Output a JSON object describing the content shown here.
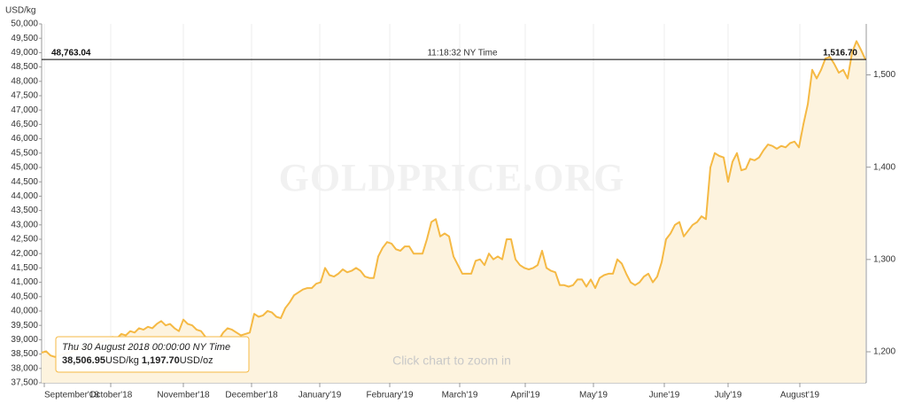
{
  "chart_data": {
    "type": "line",
    "y_axis_label": "USD/kg",
    "watermark": "GOLDPRICE.ORG",
    "zoom_hint": "Click chart to zoom in",
    "current": {
      "value": 48763.04,
      "label": "48,763.04",
      "time": "11:18:32 NY Time",
      "oz_label": "1,516.70"
    },
    "tooltip": {
      "date": "Thu 30 August 2018 00:00:00 NY Time",
      "kg_price": "38,506.95",
      "kg_unit": "USD/kg",
      "oz_price": "1,197.70",
      "oz_unit": "USD/oz"
    },
    "xlim": [
      0,
      186
    ],
    "xticks": [
      {
        "value": 0.6,
        "label": "September'18"
      },
      {
        "value": 15.6,
        "label": "October'18"
      },
      {
        "value": 32,
        "label": "November'18"
      },
      {
        "value": 47.4,
        "label": "December'18"
      },
      {
        "value": 62.8,
        "label": "January'19"
      },
      {
        "value": 78.6,
        "label": "February'19"
      },
      {
        "value": 94.4,
        "label": "March'19"
      },
      {
        "value": 109.2,
        "label": "April'19"
      },
      {
        "value": 124.6,
        "label": "May'19"
      },
      {
        "value": 140.6,
        "label": "June'19"
      },
      {
        "value": 155,
        "label": "July'19"
      },
      {
        "value": 171.2,
        "label": "August'19"
      }
    ],
    "ylim": [
      37500,
      50000
    ],
    "yticks": [
      {
        "value": 37500,
        "label": "37,500"
      },
      {
        "value": 38000,
        "label": "38,000"
      },
      {
        "value": 38500,
        "label": "38,500"
      },
      {
        "value": 39000,
        "label": "39,000"
      },
      {
        "value": 39500,
        "label": "39,500"
      },
      {
        "value": 40000,
        "label": "40,000"
      },
      {
        "value": 40500,
        "label": "40,500"
      },
      {
        "value": 41000,
        "label": "41,000"
      },
      {
        "value": 41500,
        "label": "41,500"
      },
      {
        "value": 42000,
        "label": "42,000"
      },
      {
        "value": 42500,
        "label": "42,500"
      },
      {
        "value": 43000,
        "label": "43,000"
      },
      {
        "value": 43500,
        "label": "43,500"
      },
      {
        "value": 44000,
        "label": "44,000"
      },
      {
        "value": 44500,
        "label": "44,500"
      },
      {
        "value": 45000,
        "label": "45,000"
      },
      {
        "value": 45500,
        "label": "45,500"
      },
      {
        "value": 46000,
        "label": "46,000"
      },
      {
        "value": 46500,
        "label": "46,500"
      },
      {
        "value": 47000,
        "label": "47,000"
      },
      {
        "value": 47500,
        "label": "47,500"
      },
      {
        "value": 48000,
        "label": "48,000"
      },
      {
        "value": 48500,
        "label": "48,500"
      },
      {
        "value": 49000,
        "label": "49,000"
      },
      {
        "value": 49500,
        "label": "49,500"
      },
      {
        "value": 50000,
        "label": "50,000"
      }
    ],
    "y2lim": [
      1166.4,
      1555.2
    ],
    "y2ticks": [
      {
        "value": 1200,
        "label": "1,200"
      },
      {
        "value": 1300,
        "label": "1,300"
      },
      {
        "value": 1400,
        "label": "1,400"
      },
      {
        "value": 1500,
        "label": "1,500"
      }
    ],
    "grid": true,
    "series": [
      {
        "name": "Gold",
        "color": "#f5b944",
        "fill": "#fdf3de",
        "values": [
          38550,
          38600,
          38450,
          38400,
          38450,
          38500,
          38550,
          38600,
          38650,
          38700,
          38750,
          38800,
          38850,
          38900,
          38950,
          39000,
          39100,
          39050,
          39200,
          39150,
          39300,
          39250,
          39400,
          39350,
          39450,
          39400,
          39550,
          39650,
          39500,
          39550,
          39400,
          39300,
          39700,
          39550,
          39500,
          39350,
          39300,
          39100,
          38950,
          38900,
          39000,
          39250,
          39400,
          39350,
          39250,
          39150,
          39200,
          39250,
          39900,
          39800,
          39850,
          40000,
          39950,
          39800,
          39750,
          40100,
          40300,
          40550,
          40650,
          40750,
          40800,
          40800,
          40950,
          41000,
          41500,
          41250,
          41200,
          41300,
          41450,
          41350,
          41400,
          41500,
          41400,
          41200,
          41150,
          41150,
          41900,
          42200,
          42400,
          42350,
          42150,
          42100,
          42250,
          42250,
          42000,
          42000,
          42000,
          42500,
          43100,
          43200,
          42600,
          42700,
          42600,
          41900,
          41600,
          41300,
          41300,
          41300,
          41750,
          41800,
          41600,
          42000,
          41800,
          41900,
          41800,
          42500,
          42500,
          41800,
          41600,
          41500,
          41450,
          41500,
          41600,
          42100,
          41500,
          41400,
          41350,
          40900,
          40900,
          40850,
          40900,
          41100,
          41100,
          40850,
          41100,
          40800,
          41150,
          41250,
          41300,
          41300,
          41800,
          41650,
          41300,
          41000,
          40900,
          41000,
          41200,
          41300,
          41000,
          41200,
          41700,
          42500,
          42700,
          43000,
          43100,
          42600,
          42800,
          43000,
          43100,
          43300,
          43200,
          45000,
          45500,
          45400,
          45350,
          44500,
          45200,
          45500,
          44900,
          44950,
          45300,
          45250,
          45350,
          45600,
          45800,
          45750,
          45650,
          45750,
          45700,
          45850,
          45900,
          45700,
          46500,
          47200,
          48400,
          48100,
          48400,
          48800,
          48850,
          48600,
          48300,
          48400,
          48100,
          49000,
          49400,
          49100,
          48763.04
        ]
      }
    ]
  }
}
